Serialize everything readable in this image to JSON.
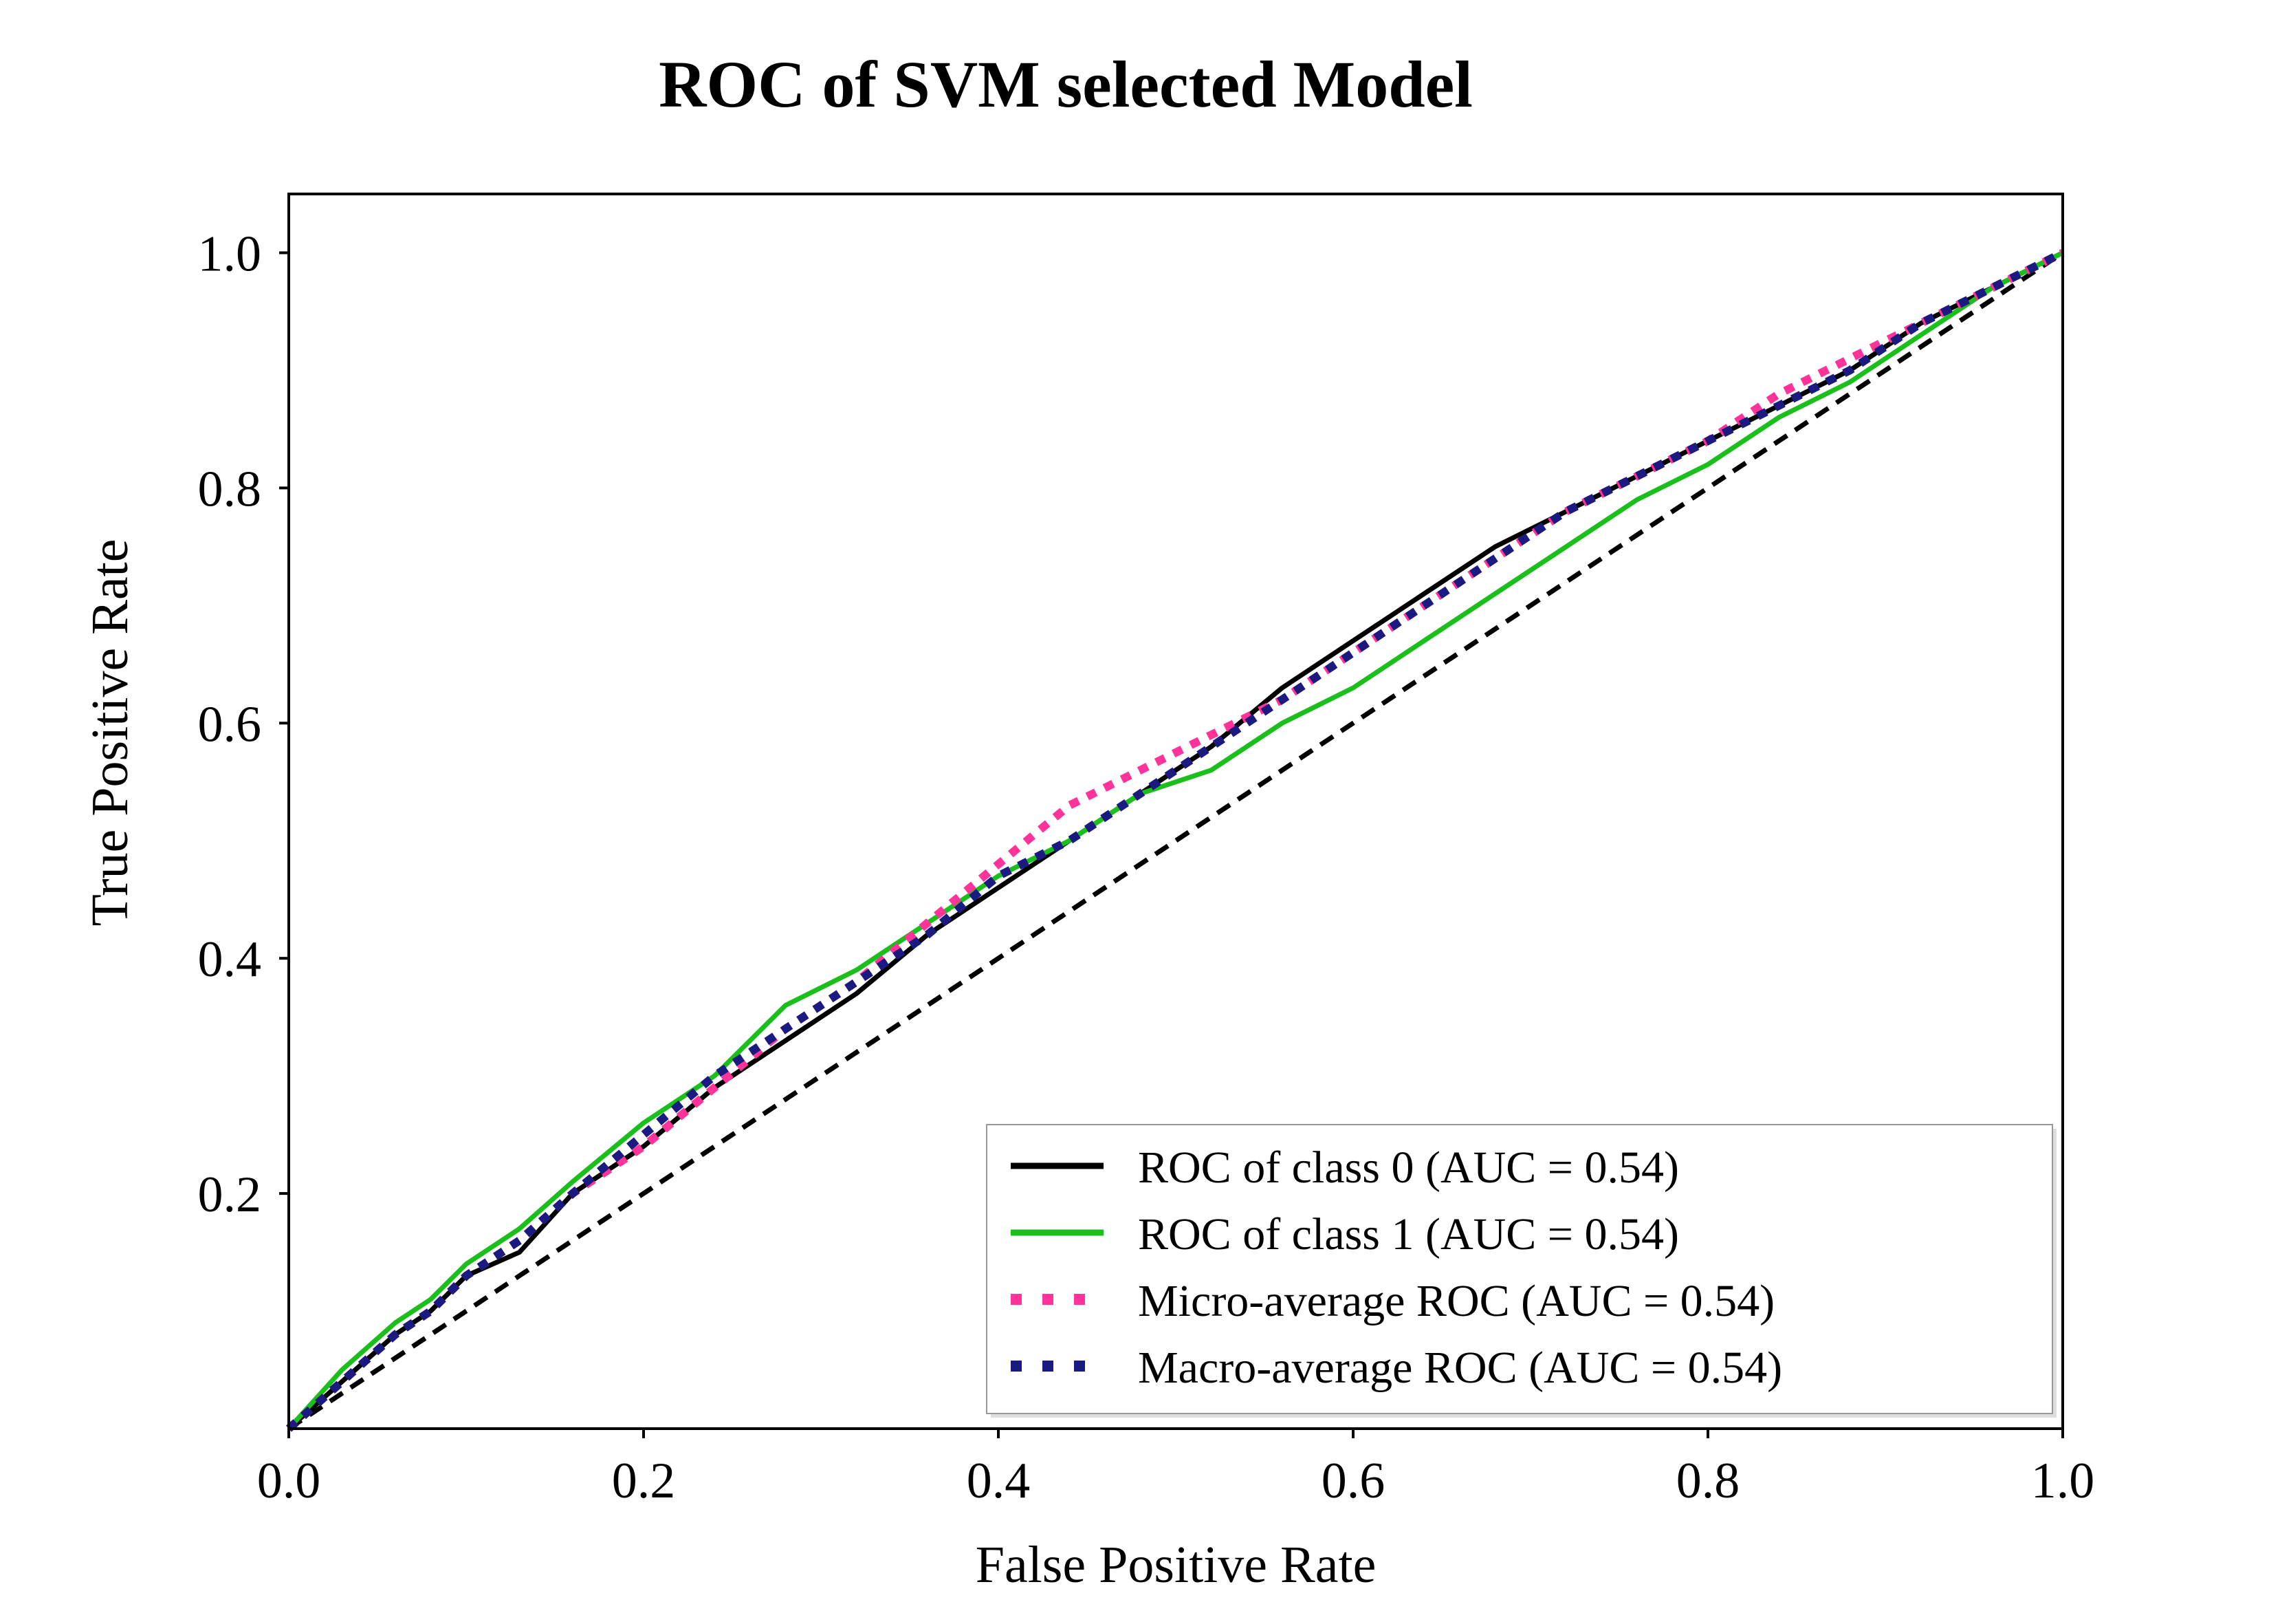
{
  "chart_data": {
    "type": "line",
    "title": "ROC of SVM selected Model",
    "xlabel": "False Positive Rate",
    "ylabel": "True Positive Rate",
    "xlim": [
      0,
      1
    ],
    "ylim": [
      0,
      1.05
    ],
    "x_ticks": [
      "0.0",
      "0.2",
      "0.4",
      "0.6",
      "0.8",
      "1.0"
    ],
    "y_ticks": [
      "0.2",
      "0.4",
      "0.6",
      "0.8",
      "1.0"
    ],
    "grid": false,
    "legend_position": "lower-right",
    "chance_line": {
      "x": [
        0,
        1
      ],
      "y": [
        0,
        1
      ],
      "style": "dashed",
      "color": "#000000"
    },
    "series": [
      {
        "name": "ROC of class 0 (AUC = 0.54)",
        "color": "#000000",
        "style": "solid",
        "x": [
          0,
          0.03,
          0.06,
          0.08,
          0.1,
          0.13,
          0.16,
          0.2,
          0.24,
          0.28,
          0.32,
          0.36,
          0.4,
          0.44,
          0.48,
          0.52,
          0.56,
          0.6,
          0.64,
          0.68,
          0.72,
          0.76,
          0.8,
          0.84,
          0.88,
          0.92,
          0.96,
          1.0
        ],
        "y": [
          0,
          0.04,
          0.08,
          0.1,
          0.13,
          0.15,
          0.2,
          0.24,
          0.29,
          0.33,
          0.37,
          0.42,
          0.46,
          0.5,
          0.54,
          0.58,
          0.63,
          0.67,
          0.71,
          0.75,
          0.78,
          0.81,
          0.84,
          0.87,
          0.9,
          0.94,
          0.97,
          1.0
        ]
      },
      {
        "name": "ROC of class 1 (AUC = 0.54)",
        "color": "#1bbf1b",
        "style": "solid",
        "x": [
          0,
          0.03,
          0.06,
          0.08,
          0.1,
          0.13,
          0.16,
          0.2,
          0.24,
          0.28,
          0.32,
          0.36,
          0.4,
          0.44,
          0.48,
          0.52,
          0.56,
          0.6,
          0.64,
          0.68,
          0.72,
          0.76,
          0.8,
          0.84,
          0.88,
          0.92,
          0.96,
          1.0
        ],
        "y": [
          0,
          0.05,
          0.09,
          0.11,
          0.14,
          0.17,
          0.21,
          0.26,
          0.3,
          0.36,
          0.39,
          0.43,
          0.47,
          0.5,
          0.54,
          0.56,
          0.6,
          0.63,
          0.67,
          0.71,
          0.75,
          0.79,
          0.82,
          0.86,
          0.89,
          0.93,
          0.97,
          1.0
        ]
      },
      {
        "name": "Micro-average ROC (AUC = 0.54)",
        "color": "#ff3399",
        "style": "dotted",
        "x": [
          0,
          0.03,
          0.06,
          0.08,
          0.1,
          0.13,
          0.16,
          0.2,
          0.24,
          0.28,
          0.32,
          0.36,
          0.4,
          0.44,
          0.48,
          0.52,
          0.56,
          0.6,
          0.64,
          0.68,
          0.72,
          0.76,
          0.8,
          0.84,
          0.88,
          0.92,
          0.96,
          1.0
        ],
        "y": [
          0,
          0.04,
          0.08,
          0.1,
          0.13,
          0.16,
          0.2,
          0.24,
          0.29,
          0.34,
          0.38,
          0.43,
          0.48,
          0.53,
          0.56,
          0.59,
          0.62,
          0.66,
          0.7,
          0.74,
          0.78,
          0.81,
          0.84,
          0.88,
          0.91,
          0.94,
          0.97,
          1.0
        ]
      },
      {
        "name": "Macro-average ROC (AUC = 0.54)",
        "color": "#1a1a80",
        "style": "dotted",
        "x": [
          0,
          0.03,
          0.06,
          0.08,
          0.1,
          0.13,
          0.16,
          0.2,
          0.24,
          0.28,
          0.32,
          0.36,
          0.4,
          0.44,
          0.48,
          0.52,
          0.56,
          0.6,
          0.64,
          0.68,
          0.72,
          0.76,
          0.8,
          0.84,
          0.88,
          0.92,
          0.96,
          1.0
        ],
        "y": [
          0,
          0.04,
          0.08,
          0.1,
          0.13,
          0.16,
          0.2,
          0.25,
          0.3,
          0.34,
          0.38,
          0.42,
          0.47,
          0.5,
          0.54,
          0.58,
          0.62,
          0.66,
          0.7,
          0.74,
          0.78,
          0.81,
          0.84,
          0.87,
          0.9,
          0.94,
          0.97,
          1.0
        ]
      }
    ]
  }
}
